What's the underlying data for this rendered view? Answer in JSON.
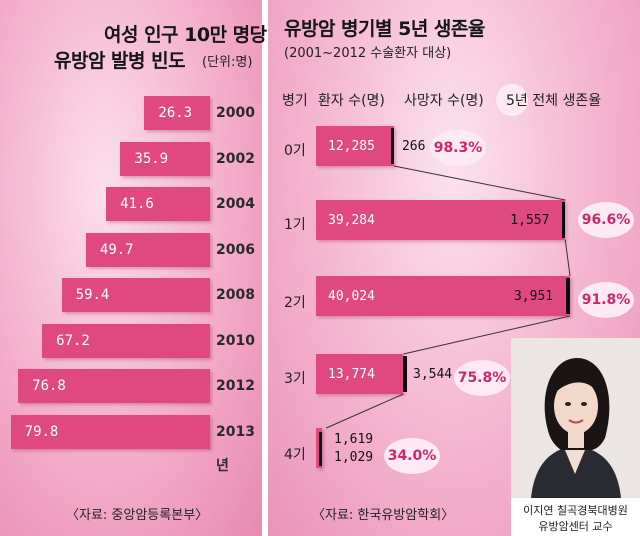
{
  "left": {
    "title_line1": "여성 인구 10만 명당",
    "title_line2": "유방암 발병 빈도",
    "unit": "(단위:명)",
    "source": "〈자료: 중앙암등록본부〉"
  },
  "right": {
    "title": "유방암 병기별 5년 생존율",
    "subtitle": "(2001~2012 수술환자 대상)",
    "source": "〈자료: 한국유방암학회〉",
    "col_stage": "병기",
    "col_patients": "환자 수(명)",
    "col_deaths": "사망자 수(명)",
    "col_survival": "5년 전체 생존율"
  },
  "photo": {
    "caption_line1": "이지연 칠곡경북대병원",
    "caption_line2": "유방암센터 교수"
  },
  "colors": {
    "bar": "#e0497f",
    "death_bar": "#0b0b0b",
    "survival_text": "#d2266a"
  },
  "chart_data": [
    {
      "type": "bar",
      "orientation": "horizontal",
      "title": "여성 인구 10만 명당 유방암 발병 빈도",
      "unit": "(단위:명)",
      "categories": [
        "2000",
        "2002",
        "2004",
        "2006",
        "2008",
        "2010",
        "2012",
        "2013년"
      ],
      "values": [
        26.3,
        35.9,
        41.6,
        49.7,
        59.4,
        67.2,
        76.8,
        79.8
      ],
      "value_labels": [
        "26.3",
        "35.9",
        "41.6",
        "49.7",
        "59.4",
        "67.2",
        "76.8",
        "79.8"
      ]
    },
    {
      "type": "bar",
      "orientation": "horizontal",
      "title": "유방암 병기별 5년 생존율",
      "categories": [
        "0기",
        "1기",
        "2기",
        "3기",
        "4기"
      ],
      "series": [
        {
          "name": "환자 수(명)",
          "values": [
            12285,
            39284,
            40024,
            13774,
            1619
          ],
          "labels": [
            "12,285",
            "39,284",
            "40,024",
            "13,774",
            "1,619"
          ]
        },
        {
          "name": "사망자 수(명)",
          "values": [
            266,
            1557,
            3951,
            3544,
            1029
          ],
          "labels": [
            "266",
            "1,557",
            "3,951",
            "3,544",
            "1,029"
          ]
        },
        {
          "name": "5년 전체 생존율",
          "values": [
            98.3,
            96.6,
            91.8,
            75.8,
            34.0
          ],
          "labels": [
            "98.3%",
            "96.6%",
            "91.8%",
            "75.8%",
            "34.0%"
          ]
        }
      ]
    }
  ]
}
